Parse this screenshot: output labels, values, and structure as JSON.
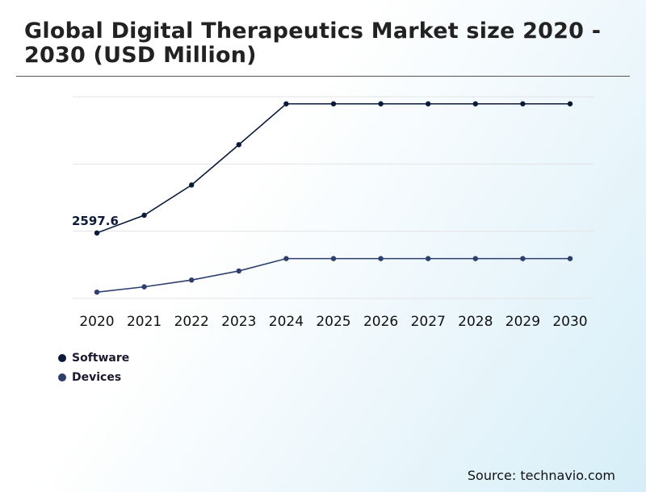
{
  "chart_title": "Global Digital Therapeutics Market size 2020 - 2030 (USD Million)",
  "source": "Source: technavio.com",
  "colors": {
    "software": "#0c1a3a",
    "devices": "#2e3f6e",
    "grid": "#e4e4e4"
  },
  "chart_data": {
    "type": "line",
    "title": "Global Digital Therapeutics Market size 2020 - 2030 (USD Million)",
    "categories": [
      "2020",
      "2021",
      "2022",
      "2023",
      "2024",
      "2025",
      "2026",
      "2027",
      "2028",
      "2029",
      "2030"
    ],
    "series": [
      {
        "name": "Software",
        "values": [
          2597.6,
          3300,
          4500,
          6100,
          7720,
          7720,
          7720,
          7720,
          7720,
          7720,
          7720
        ]
      },
      {
        "name": "Devices",
        "values": [
          250,
          460,
          730,
          1090,
          1580,
          1580,
          1580,
          1580,
          1580,
          1580,
          1580
        ]
      }
    ],
    "annotations": [
      {
        "series": "Software",
        "category": "2020",
        "label": "2597.6"
      }
    ],
    "ylim": [
      0,
      8000
    ],
    "grid": true,
    "legend": "bottom-left",
    "xlabel": "",
    "ylabel": ""
  }
}
